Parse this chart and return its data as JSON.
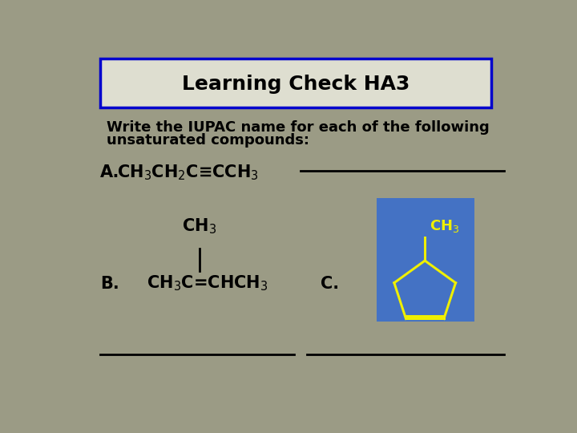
{
  "title": "Learning Check HA3",
  "subtitle_line1": "Write the IUPAC name for each of the following",
  "subtitle_line2": "unsaturated compounds:",
  "bg_color": "#9B9B85",
  "title_box_fill": "#DEDED0",
  "title_box_edge": "#0000CC",
  "title_fontsize": 18,
  "subtitle_fontsize": 13,
  "label_fontsize": 13,
  "formula_fontsize": 15,
  "label_A": "A.",
  "formula_A": "CH$_3$CH$_2$C≡CCH$_3$",
  "label_B": "B.",
  "ch3_above": "CH$_3$",
  "formula_B": "CH$_3$C=CHCH$_3$",
  "label_C": "C.",
  "cyclopentene_box_color": "#4472C4",
  "cyclopentene_line_color": "#EFEF00",
  "ch3_color": "#EFEF00",
  "text_color": "#000000"
}
